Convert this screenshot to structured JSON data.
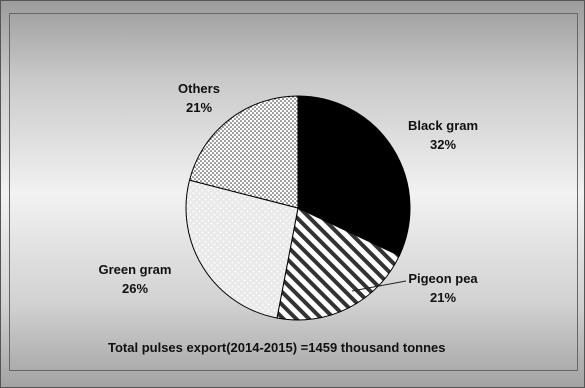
{
  "chart_data": {
    "type": "pie",
    "slices": [
      {
        "name": "Black gram",
        "value": 32,
        "value_label": "32%",
        "pattern": "solid-black"
      },
      {
        "name": "Pigeon pea",
        "value": 21,
        "value_label": "21%",
        "pattern": "diagonal-stripes"
      },
      {
        "name": "Green gram",
        "value": 26,
        "value_label": "26%",
        "pattern": "light-dots"
      },
      {
        "name": "Others",
        "value": 21,
        "value_label": "21%",
        "pattern": "dense-dots"
      }
    ],
    "start": "12 o'clock",
    "direction": "clockwise",
    "annotation": "Total pulses export(2014-2015) =1459 thousand tonnes"
  }
}
